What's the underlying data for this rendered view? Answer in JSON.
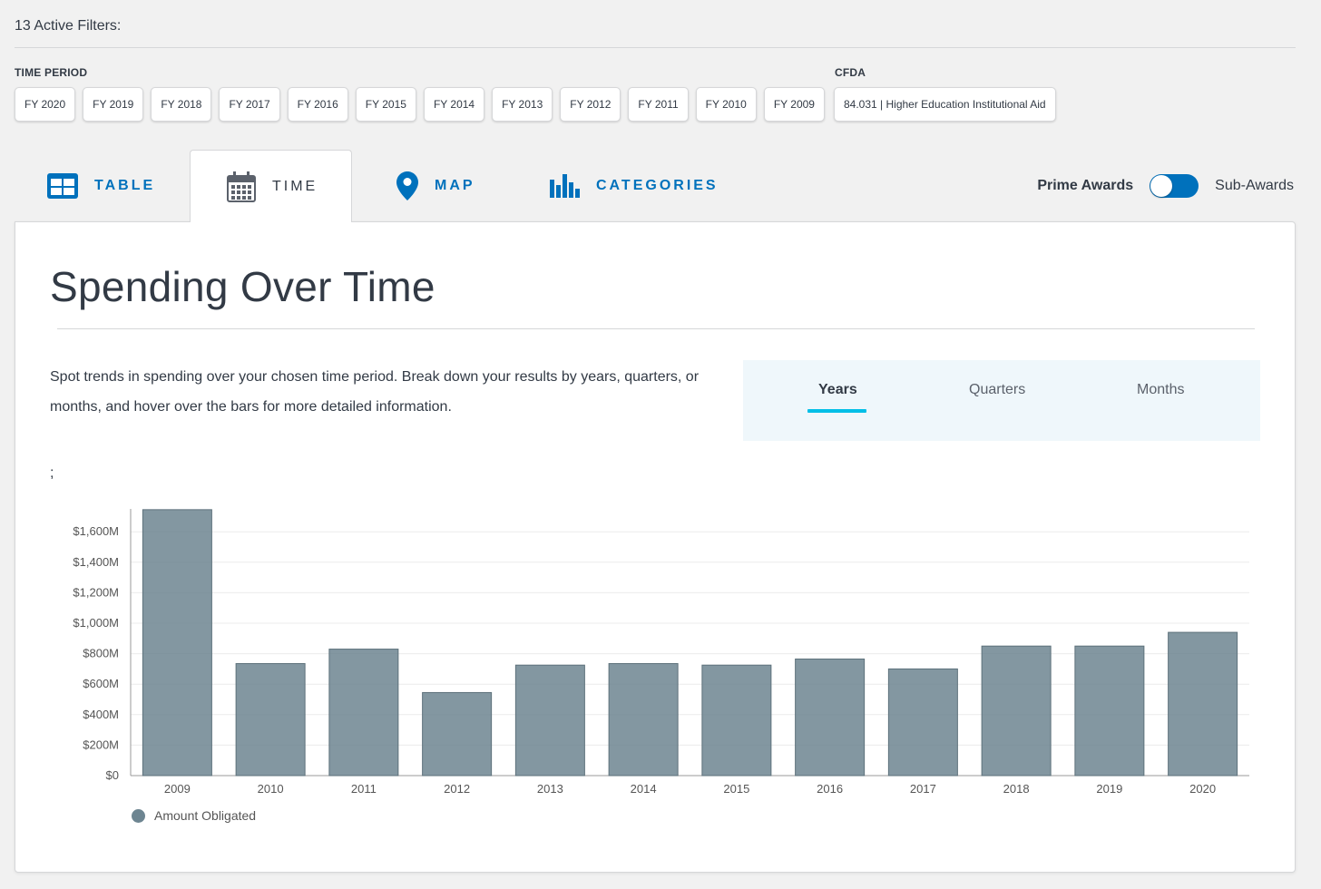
{
  "filters": {
    "title": "13 Active Filters:",
    "time_period": {
      "label": "TIME PERIOD",
      "chips": [
        "FY 2020",
        "FY 2019",
        "FY 2018",
        "FY 2017",
        "FY 2016",
        "FY 2015",
        "FY 2014",
        "FY 2013",
        "FY 2012",
        "FY 2011",
        "FY 2010",
        "FY 2009"
      ]
    },
    "cfda": {
      "label": "CFDA",
      "chips": [
        "84.031 | Higher Education Institutional Aid"
      ]
    }
  },
  "tabs": [
    {
      "label": "TABLE",
      "icon": "table-icon",
      "active": false
    },
    {
      "label": "TIME",
      "icon": "calendar-icon",
      "active": true
    },
    {
      "label": "MAP",
      "icon": "map-pin-icon",
      "active": false
    },
    {
      "label": "CATEGORIES",
      "icon": "bar-chart-icon",
      "active": false
    }
  ],
  "awards_toggle": {
    "left_label": "Prime Awards",
    "right_label": "Sub-Awards",
    "selected": "Prime Awards"
  },
  "panel": {
    "title": "Spending Over Time",
    "description": "Spot trends in spending over your chosen time period. Break down your results by years, quarters, or months, and hover over the bars for more detailed information.",
    "stray_text": ";",
    "period_options": [
      "Years",
      "Quarters",
      "Months"
    ],
    "period_selected": "Years"
  },
  "colors": {
    "accent": "#0071bc",
    "period_underline": "#02bfe7",
    "bar": "#6d8591",
    "active_tab_text": "#323a45"
  },
  "chart_data": {
    "type": "bar",
    "categories": [
      "2009",
      "2010",
      "2011",
      "2012",
      "2013",
      "2014",
      "2015",
      "2016",
      "2017",
      "2018",
      "2019",
      "2020"
    ],
    "series": [
      {
        "name": "Amount Obligated",
        "values": [
          1745,
          735,
          830,
          545,
          725,
          735,
          725,
          765,
          700,
          850,
          850,
          940
        ]
      }
    ],
    "ylim": [
      0,
      1750
    ],
    "yticks": [
      0,
      200,
      400,
      600,
      800,
      1000,
      1200,
      1400,
      1600
    ],
    "ytick_labels": [
      "$0",
      "$200M",
      "$400M",
      "$600M",
      "$800M",
      "$1,000M",
      "$1,200M",
      "$1,400M",
      "$1,600M"
    ],
    "grid": true,
    "legend": "bottom-left"
  }
}
